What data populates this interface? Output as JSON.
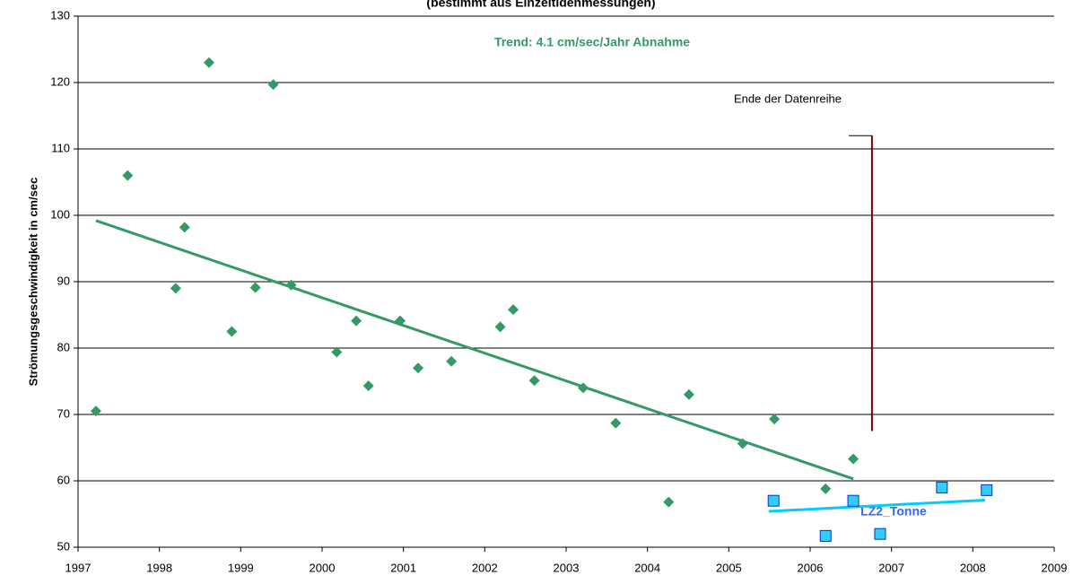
{
  "chart_data": {
    "type": "scatter",
    "title": "(bestimmt aus Einzeltidenmessungen)",
    "ylabel": "Strömungsgeschwindigkeit in cm/sec",
    "xlim": [
      1997,
      2009
    ],
    "ylim": [
      50,
      130
    ],
    "xticks": [
      1997,
      1998,
      1999,
      2000,
      2001,
      2002,
      2003,
      2004,
      2005,
      2006,
      2007,
      2008,
      2009
    ],
    "yticks": [
      50,
      60,
      70,
      80,
      90,
      100,
      110,
      120,
      130
    ],
    "grid": true,
    "series": [
      {
        "color": "#339966",
        "marker": "diamond",
        "x": [
          1997.22,
          1997.61,
          1998.2,
          1998.31,
          1998.61,
          1998.89,
          1999.18,
          1999.4,
          1999.62,
          2000.18,
          2000.42,
          2000.57,
          2000.96,
          2001.18,
          2001.59,
          2002.19,
          2002.35,
          2002.61,
          2003.21,
          2003.61,
          2004.26,
          2004.51,
          2005.17,
          2005.56,
          2006.19,
          2006.53
        ],
        "values": [
          70.5,
          106,
          89,
          98.2,
          123,
          82.5,
          89.1,
          119.7,
          89.5,
          79.4,
          84.1,
          74.3,
          84.1,
          77,
          78,
          83.2,
          85.8,
          75.1,
          74,
          68.7,
          56.8,
          73,
          65.6,
          69.3,
          58.8,
          63.3
        ]
      },
      {
        "color": "#33ccff",
        "marker": "square",
        "x": [
          2005.55,
          2006.19,
          2006.53,
          2006.86,
          2007.62,
          2008.17
        ],
        "values": [
          57,
          51.7,
          57,
          52,
          59,
          58.6
        ]
      }
    ],
    "trendlines": [
      {
        "color": "#339966",
        "x": [
          1997.22,
          2006.53
        ],
        "values": [
          99.2,
          60.3
        ]
      },
      {
        "color": "#00ccff",
        "x": [
          2005.49,
          2008.15
        ],
        "values": [
          55.4,
          57.1
        ]
      }
    ],
    "end_line": {
      "color": "#800000",
      "x": 2006.76,
      "values": [
        112,
        67.5
      ]
    },
    "annotations": [
      "Trend:  4.1 cm/sec/Jahr  Abnahme",
      "LZ2_Tonne",
      "Ende der Datenreihe"
    ]
  }
}
